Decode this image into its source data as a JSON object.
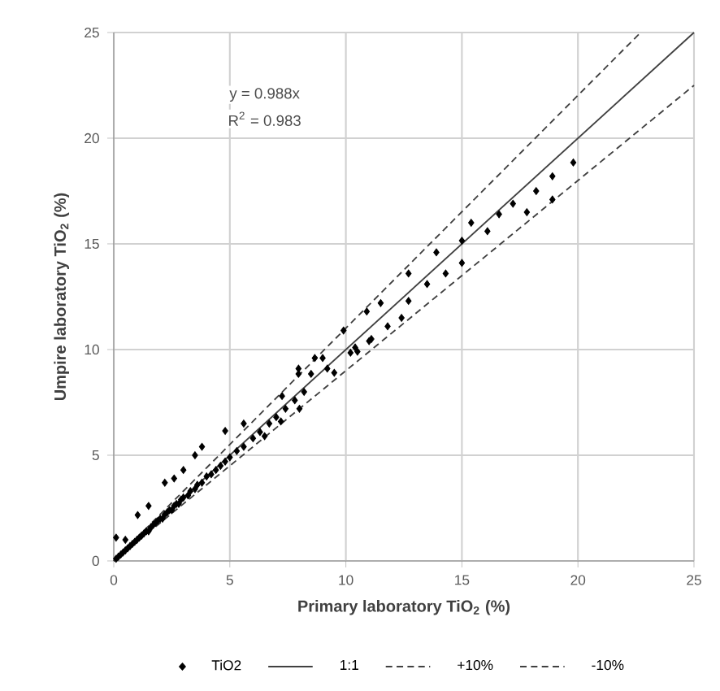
{
  "chart_data": {
    "type": "scatter",
    "xlabel": "Primary laboratory TiO$_{2}$ (%)",
    "ylabel": "Umpire laboratory TiO$_{2}$ (%)",
    "xlim": [
      0,
      25
    ],
    "ylim": [
      0,
      25
    ],
    "xticks": [
      0,
      5,
      10,
      15,
      20,
      25
    ],
    "yticks": [
      0,
      5,
      10,
      15,
      20,
      25
    ],
    "grid": true,
    "legend": "bottom",
    "annotations": [
      "y = 0.988x",
      "R$^{2}$ = 0.983"
    ],
    "series": [
      {
        "name": "TiO2",
        "marker": "diamond",
        "color": "#000000",
        "x": [
          0.1,
          0.2,
          0.3,
          0.4,
          0.5,
          0.6,
          0.7,
          0.8,
          0.9,
          1.0,
          1.1,
          1.2,
          1.3,
          1.4,
          1.5,
          1.6,
          1.7,
          1.8,
          1.9,
          2.0,
          2.1,
          2.2,
          2.3,
          2.4,
          2.5,
          2.6,
          2.7,
          2.8,
          2.9,
          3.0,
          3.2,
          3.3,
          3.5,
          3.6,
          3.8,
          4.0,
          4.2,
          4.4,
          4.6,
          4.8,
          5.0,
          5.3,
          5.6,
          6.0,
          6.3,
          6.7,
          7.0,
          7.4,
          7.8,
          8.2,
          0.1,
          0.5,
          1.03,
          1.5,
          2.2,
          2.6,
          3.0,
          3.5,
          3.8,
          4.8,
          5.6,
          7.25,
          7.96,
          8.66,
          7.96,
          8.5,
          9.0,
          9.2,
          9.9,
          10.2,
          10.4,
          10.9,
          11.1,
          11.5,
          11.8,
          12.4,
          12.7,
          12.7,
          13.5,
          13.9,
          14.3,
          15.0,
          15.0,
          15.4,
          16.1,
          16.6,
          17.2,
          17.8,
          18.2,
          18.9,
          18.9,
          19.8,
          6.5,
          7.2,
          8.0,
          9.5,
          10.5,
          11.0
        ],
        "values": [
          0.1,
          0.2,
          0.3,
          0.4,
          0.5,
          0.6,
          0.7,
          0.8,
          0.9,
          1.0,
          1.1,
          1.2,
          1.3,
          1.4,
          1.4,
          1.6,
          1.7,
          1.8,
          1.9,
          2.0,
          2.0,
          2.2,
          2.3,
          2.4,
          2.4,
          2.6,
          2.7,
          2.7,
          2.9,
          3.0,
          3.1,
          3.3,
          3.4,
          3.6,
          3.7,
          4.0,
          4.1,
          4.3,
          4.5,
          4.7,
          4.9,
          5.2,
          5.4,
          5.8,
          6.1,
          6.5,
          6.8,
          7.2,
          7.6,
          8.0,
          1.1,
          1.0,
          2.17,
          2.6,
          3.7,
          3.9,
          4.3,
          5.0,
          5.4,
          6.15,
          6.5,
          7.8,
          8.85,
          9.6,
          9.1,
          8.85,
          9.6,
          9.1,
          10.9,
          9.85,
          10.1,
          11.8,
          10.5,
          12.2,
          11.1,
          11.5,
          12.3,
          13.6,
          13.1,
          14.6,
          13.6,
          15.15,
          14.1,
          16.0,
          15.6,
          16.4,
          16.9,
          16.5,
          17.5,
          18.2,
          17.1,
          18.85,
          5.9,
          6.6,
          7.2,
          8.9,
          9.9,
          10.4
        ]
      },
      {
        "name": "1:1",
        "type": "line",
        "line_style": "solid",
        "marker": "none",
        "color": "#404040",
        "x": [
          0,
          25
        ],
        "values": [
          0,
          25
        ]
      },
      {
        "name": "+10%",
        "type": "line",
        "line_style": "dashed",
        "marker": "none",
        "color": "#404040",
        "x": [
          0,
          22.7
        ],
        "values": [
          0,
          25
        ]
      },
      {
        "name": "-10%",
        "type": "line",
        "line_style": "dashed",
        "marker": "none",
        "color": "#404040",
        "x": [
          0,
          25
        ],
        "values": [
          0,
          22.5
        ]
      }
    ]
  }
}
